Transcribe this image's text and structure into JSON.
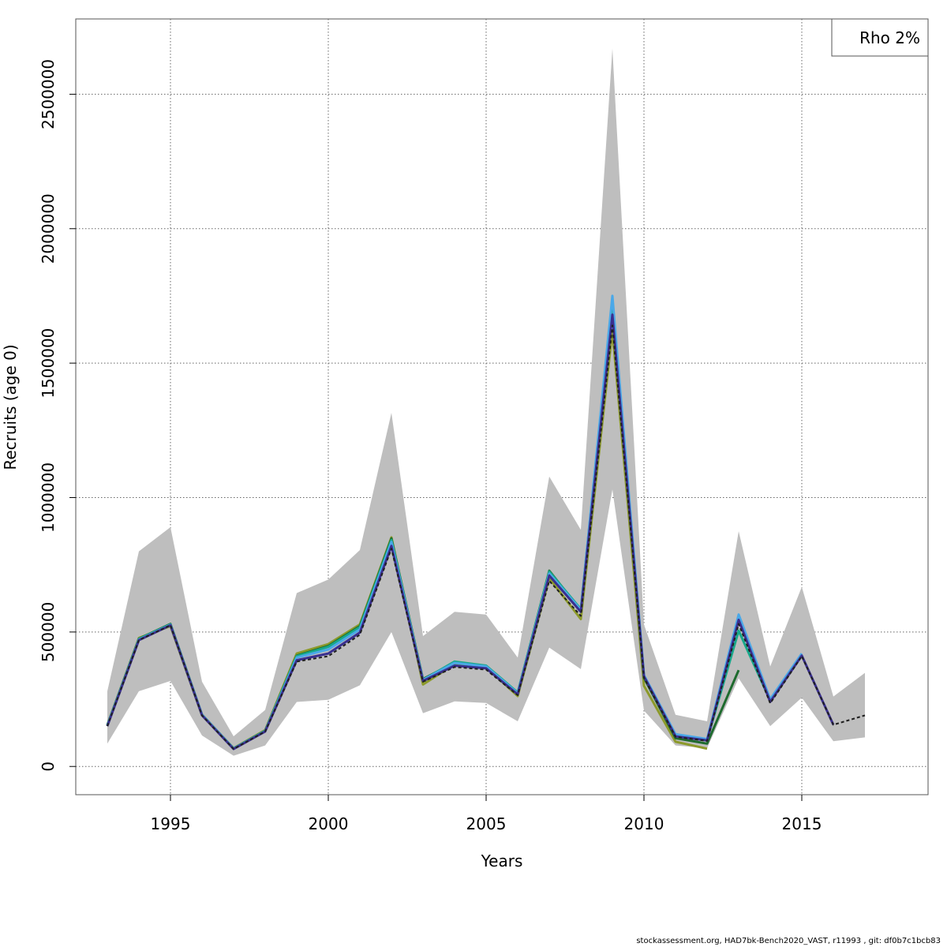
{
  "chart_data": {
    "type": "line",
    "title": "",
    "xlabel": "Years",
    "ylabel": "Recruits (age 0)",
    "xlim": [
      1992,
      2019
    ],
    "ylim": [
      -105000,
      2780000
    ],
    "xticks": [
      1995,
      2000,
      2005,
      2010,
      2015
    ],
    "yticks": [
      0,
      500000,
      1000000,
      1500000,
      2000000,
      2500000
    ],
    "grid": true,
    "legend": {
      "position": "top-right",
      "text": "Rho 2%"
    },
    "ribbon": {
      "x": [
        1993,
        1994,
        1995,
        1996,
        1997,
        1998,
        1999,
        2000,
        2001,
        2002,
        2003,
        2004,
        2005,
        2006,
        2007,
        2008,
        2009,
        2010,
        2011,
        2012,
        2013,
        2014,
        2015,
        2016,
        2017
      ],
      "lower": [
        85000,
        280000,
        318000,
        115000,
        40000,
        78000,
        240000,
        248000,
        302000,
        500000,
        198000,
        242000,
        236000,
        168000,
        442000,
        362000,
        1030000,
        208000,
        78000,
        68000,
        328000,
        150000,
        256000,
        94000,
        108000
      ],
      "upper": [
        280000,
        800000,
        890000,
        315000,
        112000,
        210000,
        645000,
        695000,
        805000,
        1315000,
        485000,
        575000,
        565000,
        405000,
        1078000,
        880000,
        2670000,
        528000,
        192000,
        168000,
        875000,
        372000,
        668000,
        260000,
        348000
      ]
    },
    "series": [
      {
        "color": "#1f1f1f",
        "dashed": true,
        "x": [
          1993,
          1994,
          1995,
          1996,
          1997,
          1998,
          1999,
          2000,
          2001,
          2002,
          2003,
          2004,
          2005,
          2006,
          2007,
          2008,
          2009,
          2010,
          2011,
          2012,
          2013,
          2014,
          2015,
          2016,
          2017
        ],
        "values": [
          150000,
          470000,
          525000,
          190000,
          65000,
          130000,
          390000,
          410000,
          490000,
          810000,
          315000,
          370000,
          360000,
          265000,
          690000,
          560000,
          1640000,
          330000,
          110000,
          95000,
          530000,
          235000,
          410000,
          155000,
          190000
        ]
      },
      {
        "color": "#3a2f8f",
        "x": [
          1993,
          1994,
          1995,
          1996,
          1997,
          1998,
          1999,
          2000,
          2001,
          2002,
          2003,
          2004,
          2005,
          2006,
          2007,
          2008,
          2009,
          2010,
          2011,
          2012,
          2013,
          2014,
          2015,
          2016
        ],
        "values": [
          150000,
          470000,
          525000,
          190000,
          65000,
          130000,
          395000,
          420000,
          498000,
          820000,
          318000,
          375000,
          365000,
          268000,
          710000,
          575000,
          1680000,
          335000,
          112000,
          97000,
          545000,
          240000,
          412000,
          155000
        ]
      },
      {
        "color": "#4aa8e8",
        "x": [
          1993,
          1994,
          1995,
          1996,
          1997,
          1998,
          1999,
          2000,
          2001,
          2002,
          2003,
          2004,
          2005,
          2006,
          2007,
          2008,
          2009,
          2010,
          2011,
          2012,
          2013,
          2014,
          2015
        ],
        "values": [
          152000,
          472000,
          527000,
          192000,
          66000,
          131000,
          405000,
          435000,
          510000,
          835000,
          322000,
          385000,
          372000,
          272000,
          718000,
          582000,
          1750000,
          340000,
          120000,
          102000,
          565000,
          250000,
          420000
        ]
      },
      {
        "color": "#17a88a",
        "x": [
          1993,
          1994,
          1995,
          1996,
          1997,
          1998,
          1999,
          2000,
          2001,
          2002,
          2003,
          2004,
          2005,
          2006,
          2007,
          2008,
          2009,
          2010,
          2011,
          2012,
          2013,
          2014
        ],
        "values": [
          153000,
          474000,
          528000,
          192000,
          67000,
          132000,
          410000,
          445000,
          518000,
          842000,
          322000,
          390000,
          375000,
          275000,
          725000,
          585000,
          1725000,
          338000,
          115000,
          100000,
          505000,
          245000
        ]
      },
      {
        "color": "#1e6b2e",
        "x": [
          1993,
          1994,
          1995,
          1996,
          1997,
          1998,
          1999,
          2000,
          2001,
          2002,
          2003,
          2004,
          2005,
          2006,
          2007,
          2008,
          2009,
          2010,
          2011,
          2012,
          2013
        ],
        "values": [
          154000,
          475000,
          530000,
          193000,
          67000,
          133000,
          412000,
          448000,
          522000,
          848000,
          325000,
          386000,
          372000,
          273000,
          728000,
          580000,
          1700000,
          330000,
          105000,
          85000,
          358000
        ]
      },
      {
        "color": "#8c9a2a",
        "x": [
          1993,
          1994,
          1995,
          1996,
          1997,
          1998,
          1999,
          2000,
          2001,
          2002,
          2003,
          2004,
          2005,
          2006,
          2007,
          2008,
          2009,
          2010,
          2011,
          2012
        ],
        "values": [
          155000,
          478000,
          522000,
          190000,
          68000,
          135000,
          420000,
          455000,
          528000,
          852000,
          305000,
          380000,
          368000,
          262000,
          700000,
          548000,
          1620000,
          300000,
          92000,
          66000
        ]
      }
    ]
  },
  "footer": "stockassessment.org, HAD7bk-Bench2020_VAST, r11993 , git: df0b7c1bcb83"
}
